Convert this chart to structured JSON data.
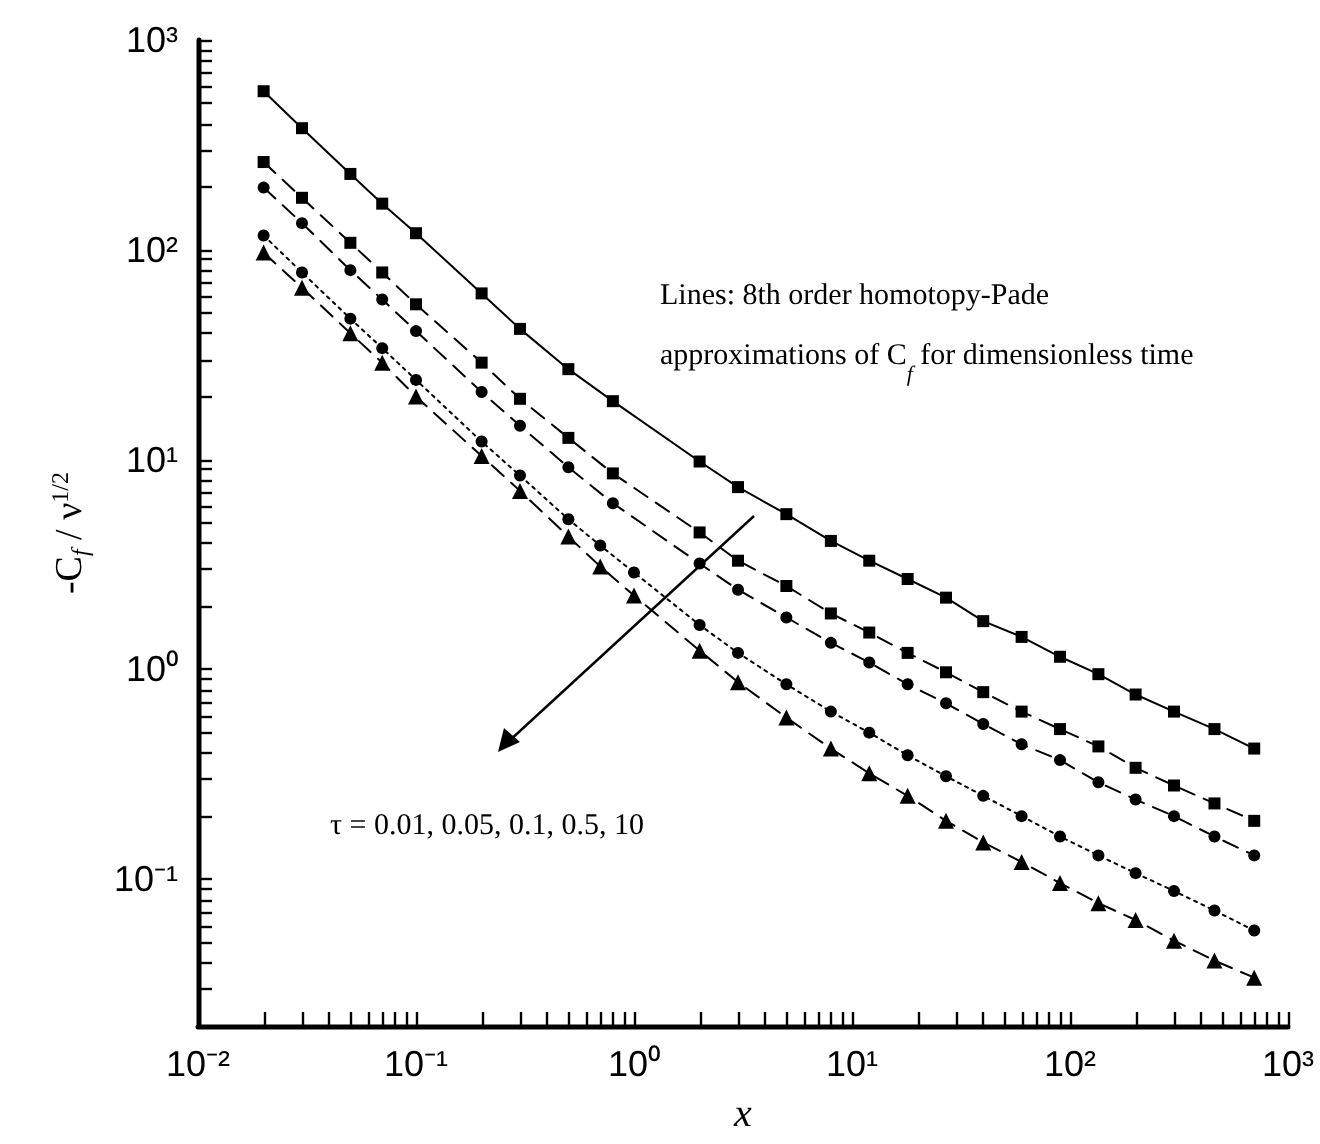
{
  "chart_data": {
    "type": "line",
    "xlabel": "x",
    "ylabel": "-C$_{f}$ / ν$^{1/2}$",
    "log": "xy",
    "grid": false,
    "xlim": [
      0.01,
      1000
    ],
    "ylim": [
      0.02,
      1000
    ],
    "xticks": [
      {
        "value": 0.01,
        "label": "10⁻²"
      },
      {
        "value": 0.02,
        "label": null
      },
      {
        "value": 0.03,
        "label": null
      },
      {
        "value": 0.04,
        "label": null
      },
      {
        "value": 0.05,
        "label": null
      },
      {
        "value": 0.06,
        "label": null
      },
      {
        "value": 0.07,
        "label": null
      },
      {
        "value": 0.08,
        "label": null
      },
      {
        "value": 0.09,
        "label": null
      },
      {
        "value": 0.1,
        "label": "10⁻¹"
      },
      {
        "value": 0.2,
        "label": null
      },
      {
        "value": 0.3,
        "label": null
      },
      {
        "value": 0.4,
        "label": null
      },
      {
        "value": 0.5,
        "label": null
      },
      {
        "value": 0.6,
        "label": null
      },
      {
        "value": 0.7,
        "label": null
      },
      {
        "value": 0.8,
        "label": null
      },
      {
        "value": 0.9,
        "label": null
      },
      {
        "value": 1,
        "label": "10⁰"
      },
      {
        "value": 2,
        "label": null
      },
      {
        "value": 3,
        "label": null
      },
      {
        "value": 4,
        "label": null
      },
      {
        "value": 5,
        "label": null
      },
      {
        "value": 6,
        "label": null
      },
      {
        "value": 7,
        "label": null
      },
      {
        "value": 8,
        "label": null
      },
      {
        "value": 9,
        "label": null
      },
      {
        "value": 10,
        "label": "10¹"
      },
      {
        "value": 20,
        "label": null
      },
      {
        "value": 30,
        "label": null
      },
      {
        "value": 40,
        "label": null
      },
      {
        "value": 50,
        "label": null
      },
      {
        "value": 60,
        "label": null
      },
      {
        "value": 70,
        "label": null
      },
      {
        "value": 80,
        "label": null
      },
      {
        "value": 90,
        "label": null
      },
      {
        "value": 100,
        "label": "10²"
      },
      {
        "value": 200,
        "label": null
      },
      {
        "value": 300,
        "label": null
      },
      {
        "value": 400,
        "label": null
      },
      {
        "value": 500,
        "label": null
      },
      {
        "value": 600,
        "label": null
      },
      {
        "value": 700,
        "label": null
      },
      {
        "value": 800,
        "label": null
      },
      {
        "value": 900,
        "label": null
      },
      {
        "value": 1000,
        "label": "10³"
      }
    ],
    "yticks": [
      {
        "value": 0.03,
        "label": null
      },
      {
        "value": 0.04,
        "label": null
      },
      {
        "value": 0.05,
        "label": null
      },
      {
        "value": 0.06,
        "label": null
      },
      {
        "value": 0.07,
        "label": null
      },
      {
        "value": 0.08,
        "label": null
      },
      {
        "value": 0.09,
        "label": null
      },
      {
        "value": 0.1,
        "label": "10⁻¹"
      },
      {
        "value": 0.2,
        "label": null
      },
      {
        "value": 0.3,
        "label": null
      },
      {
        "value": 0.4,
        "label": null
      },
      {
        "value": 0.5,
        "label": null
      },
      {
        "value": 0.6,
        "label": null
      },
      {
        "value": 0.7,
        "label": null
      },
      {
        "value": 0.8,
        "label": null
      },
      {
        "value": 0.9,
        "label": null
      },
      {
        "value": 1,
        "label": "10⁰"
      },
      {
        "value": 2,
        "label": null
      },
      {
        "value": 3,
        "label": null
      },
      {
        "value": 4,
        "label": null
      },
      {
        "value": 5,
        "label": null
      },
      {
        "value": 6,
        "label": null
      },
      {
        "value": 7,
        "label": null
      },
      {
        "value": 8,
        "label": null
      },
      {
        "value": 9,
        "label": null
      },
      {
        "value": 10,
        "label": "10¹"
      },
      {
        "value": 20,
        "label": null
      },
      {
        "value": 30,
        "label": null
      },
      {
        "value": 40,
        "label": null
      },
      {
        "value": 50,
        "label": null
      },
      {
        "value": 60,
        "label": null
      },
      {
        "value": 70,
        "label": null
      },
      {
        "value": 80,
        "label": null
      },
      {
        "value": 90,
        "label": null
      },
      {
        "value": 100,
        "label": "10²"
      },
      {
        "value": 200,
        "label": null
      },
      {
        "value": 300,
        "label": null
      },
      {
        "value": 400,
        "label": null
      },
      {
        "value": 500,
        "label": null
      },
      {
        "value": 600,
        "label": null
      },
      {
        "value": 700,
        "label": null
      },
      {
        "value": 800,
        "label": null
      },
      {
        "value": 900,
        "label": null
      },
      {
        "value": 1000,
        "label": "10³"
      }
    ],
    "annotations": [
      "Lines: 8th order homotopy-Pade\napproximations of C$_{f}$ for dimensionless time",
      "τ = 0.01, 0.05, 0.1, 0.5, 10"
    ],
    "series": [
      {
        "color": "#000000",
        "marker": "square",
        "line_style": "solid",
        "x": [
          0.02,
          0.03,
          0.05,
          0.07,
          0.1,
          0.2,
          0.3,
          0.5,
          0.8,
          2,
          3,
          5,
          8,
          12,
          18,
          27,
          40,
          60,
          90,
          135,
          200,
          300,
          460,
          700
        ],
        "values": [
          570,
          380,
          230,
          166,
          120,
          62,
          42,
          27,
          19,
          9.8,
          7.4,
          5.5,
          4.1,
          3.3,
          2.7,
          2.2,
          1.7,
          1.43,
          1.15,
          0.95,
          0.76,
          0.63,
          0.52,
          0.42
        ]
      },
      {
        "color": "#000000",
        "marker": "square",
        "line_style": "dashed",
        "x": [
          0.02,
          0.03,
          0.05,
          0.07,
          0.1,
          0.2,
          0.3,
          0.5,
          0.8,
          2,
          3,
          5,
          8,
          12,
          18,
          27,
          40,
          60,
          90,
          135,
          200,
          300,
          460,
          700
        ],
        "values": [
          262,
          177,
          108,
          78,
          55,
          29,
          19.5,
          12.7,
          8.6,
          4.5,
          3.3,
          2.5,
          1.85,
          1.5,
          1.2,
          0.97,
          0.78,
          0.63,
          0.52,
          0.43,
          0.34,
          0.28,
          0.23,
          0.19
        ]
      },
      {
        "color": "#000000",
        "marker": "circle",
        "line_style": "dashed",
        "x": [
          0.02,
          0.03,
          0.05,
          0.07,
          0.1,
          0.2,
          0.3,
          0.5,
          0.8,
          2,
          3,
          5,
          8,
          12,
          18,
          27,
          40,
          60,
          90,
          135,
          200,
          300,
          460,
          700
        ],
        "values": [
          198,
          134,
          80,
          58,
          41,
          21,
          14.5,
          9.2,
          6.2,
          3.2,
          2.4,
          1.77,
          1.34,
          1.08,
          0.85,
          0.69,
          0.55,
          0.44,
          0.37,
          0.29,
          0.24,
          0.2,
          0.16,
          0.13
        ]
      },
      {
        "color": "#000000",
        "marker": "circle",
        "line_style": "dotted",
        "x": [
          0.02,
          0.03,
          0.05,
          0.07,
          0.1,
          0.2,
          0.3,
          0.5,
          0.7,
          1,
          2,
          3,
          5,
          8,
          12,
          18,
          27,
          40,
          60,
          90,
          135,
          200,
          300,
          460,
          700
        ],
        "values": [
          117,
          78,
          47,
          34,
          24,
          12.2,
          8.4,
          5.2,
          3.9,
          2.9,
          1.63,
          1.2,
          0.85,
          0.63,
          0.5,
          0.39,
          0.31,
          0.25,
          0.2,
          0.16,
          0.13,
          0.107,
          0.088,
          0.071,
          0.057
        ]
      },
      {
        "color": "#000000",
        "marker": "triangle",
        "line_style": "dashed",
        "x": [
          0.02,
          0.03,
          0.05,
          0.07,
          0.1,
          0.2,
          0.3,
          0.5,
          0.7,
          1,
          2,
          3,
          5,
          8,
          12,
          18,
          27,
          40,
          60,
          90,
          135,
          200,
          300,
          460,
          700
        ],
        "values": [
          97,
          66,
          40,
          29,
          20,
          10.4,
          7.1,
          4.3,
          3.1,
          2.25,
          1.23,
          0.87,
          0.59,
          0.42,
          0.32,
          0.25,
          0.19,
          0.15,
          0.121,
          0.096,
          0.077,
          0.064,
          0.051,
          0.041,
          0.034
        ]
      }
    ]
  }
}
